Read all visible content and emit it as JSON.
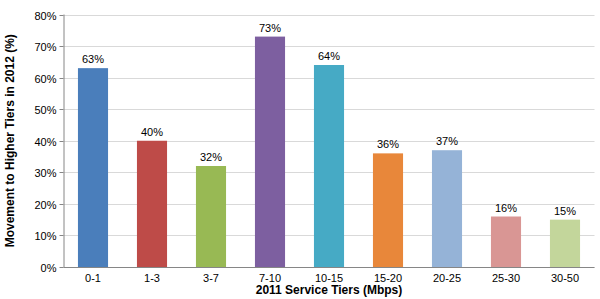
{
  "chart_data": {
    "type": "bar",
    "x_label": "2011 Service Tiers (Mbps)",
    "y_label": "Movement to Higher Tiers in 2012 (%)",
    "categories": [
      "0-1",
      "1-3",
      "3-7",
      "7-10",
      "10-15",
      "15-20",
      "20-25",
      "25-30",
      "30-50"
    ],
    "values": [
      63,
      40,
      32,
      73,
      64,
      36,
      37,
      16,
      15
    ],
    "value_labels": [
      "63%",
      "40%",
      "32%",
      "73%",
      "64%",
      "36%",
      "37%",
      "16%",
      "15%"
    ],
    "colors": [
      "#4a7ebb",
      "#be4b48",
      "#98b954",
      "#7d5fa0",
      "#46aac5",
      "#e8873a",
      "#95b3d7",
      "#d99694",
      "#c3d69b"
    ],
    "ylim": [
      0,
      80
    ],
    "yticks": [
      {
        "value": 0,
        "label": "0%"
      },
      {
        "value": 10,
        "label": "10%"
      },
      {
        "value": 20,
        "label": "20%"
      },
      {
        "value": 30,
        "label": "30%"
      },
      {
        "value": 40,
        "label": "40%"
      },
      {
        "value": 50,
        "label": "50%"
      },
      {
        "value": 60,
        "label": "60%"
      },
      {
        "value": 70,
        "label": "70%"
      },
      {
        "value": 80,
        "label": "80%"
      }
    ],
    "grid": true,
    "data_labels": true
  }
}
